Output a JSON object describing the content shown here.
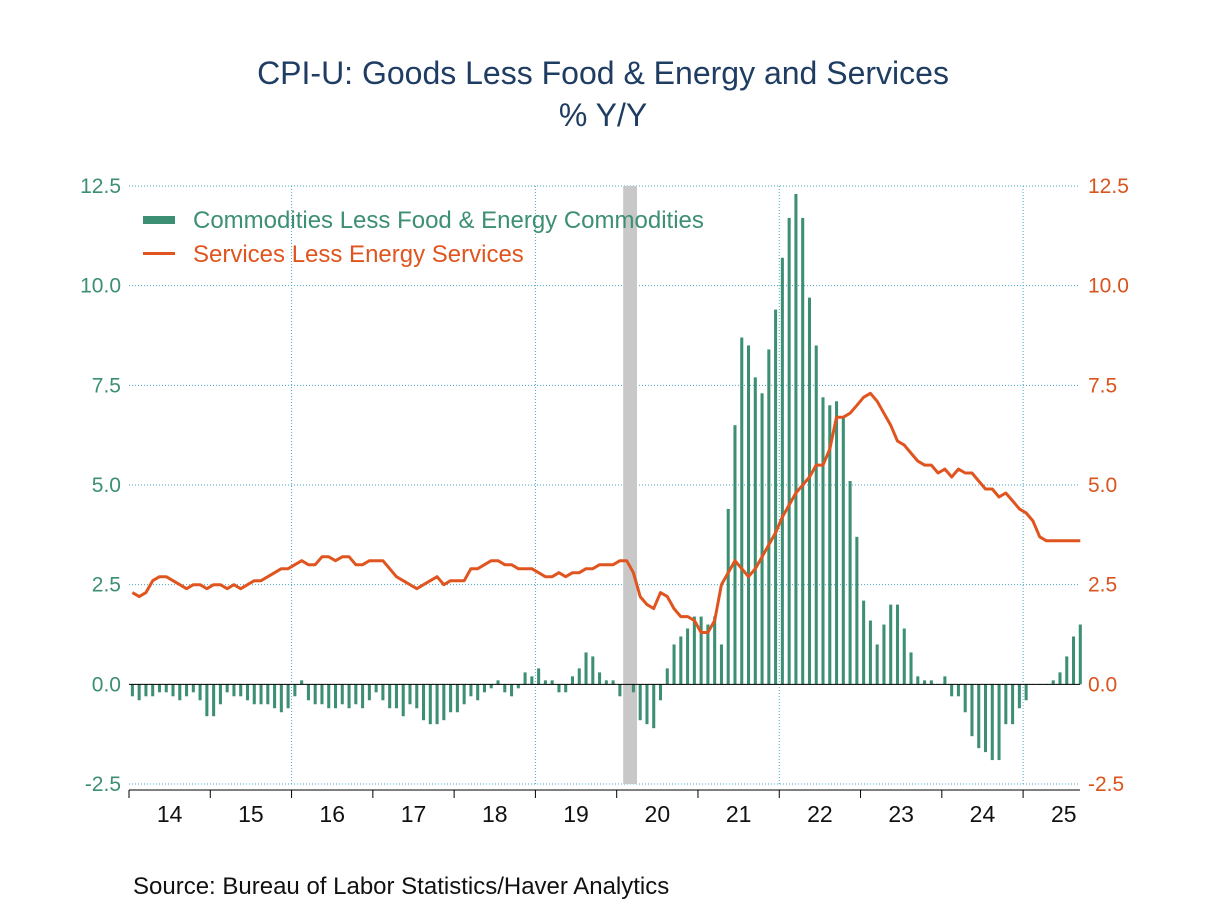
{
  "chart_data": {
    "type": "bar+line",
    "title": "CPI-U: Goods Less Food & Energy and Services",
    "subtitle": "% Y/Y",
    "source": "Source:  Bureau of Labor Statistics/Haver Analytics",
    "x_tick_labels": [
      "14",
      "15",
      "16",
      "17",
      "18",
      "19",
      "20",
      "21",
      "22",
      "23",
      "24",
      "25"
    ],
    "xlim": [
      2014.0,
      2025.7
    ],
    "y_left": {
      "ticks": [
        "12.5",
        "10.0",
        "7.5",
        "5.0",
        "2.5",
        "0.0",
        "-2.5"
      ],
      "ylim": [
        -2.5,
        12.5
      ]
    },
    "y_right": {
      "ticks": [
        "12.5",
        "10.0",
        "7.5",
        "5.0",
        "2.5",
        "0.0",
        "-2.5"
      ],
      "ylim": [
        -2.5,
        12.5
      ]
    },
    "grid": "dotted",
    "legend_position": "top-left",
    "recession_shading": [
      2020.08,
      2020.25
    ],
    "series": [
      {
        "name": "Commodities Less Food & Energy Commodities",
        "type": "bar",
        "axis": "left",
        "color": "#3d8f73",
        "start": 2014.0,
        "step": 0.0833,
        "values": [
          -0.3,
          -0.4,
          -0.3,
          -0.3,
          -0.2,
          -0.2,
          -0.3,
          -0.4,
          -0.3,
          -0.2,
          -0.4,
          -0.8,
          -0.8,
          -0.5,
          -0.2,
          -0.3,
          -0.3,
          -0.4,
          -0.5,
          -0.5,
          -0.5,
          -0.6,
          -0.7,
          -0.6,
          -0.3,
          0.1,
          -0.4,
          -0.5,
          -0.5,
          -0.6,
          -0.6,
          -0.5,
          -0.6,
          -0.5,
          -0.6,
          -0.4,
          -0.2,
          -0.4,
          -0.6,
          -0.6,
          -0.8,
          -0.5,
          -0.6,
          -0.9,
          -1.0,
          -1.0,
          -0.9,
          -0.7,
          -0.7,
          -0.5,
          -0.3,
          -0.4,
          -0.2,
          -0.1,
          0.1,
          -0.2,
          -0.3,
          -0.1,
          0.3,
          0.2,
          0.4,
          0.1,
          0.1,
          -0.2,
          -0.2,
          0.2,
          0.4,
          0.8,
          0.7,
          0.3,
          0.1,
          0.1,
          -0.3,
          0.0,
          -0.2,
          -0.9,
          -1.0,
          -1.1,
          -0.4,
          0.4,
          1.0,
          1.2,
          1.4,
          1.7,
          1.7,
          1.5,
          1.7,
          1.0,
          4.4,
          6.5,
          8.7,
          8.5,
          7.7,
          7.3,
          8.4,
          9.4,
          10.7,
          11.7,
          12.3,
          11.7,
          9.7,
          8.5,
          7.2,
          7.0,
          7.1,
          6.7,
          5.1,
          3.7,
          2.1,
          1.6,
          1.0,
          1.5,
          2.0,
          2.0,
          1.4,
          0.8,
          0.2,
          0.1,
          0.1,
          0.0,
          0.2,
          -0.3,
          -0.3,
          -0.7,
          -1.3,
          -1.6,
          -1.7,
          -1.9,
          -1.9,
          -1.0,
          -1.0,
          -0.6,
          -0.4,
          0.0,
          0.0,
          0.0,
          0.1,
          0.3,
          0.7,
          1.2,
          1.5
        ]
      },
      {
        "name": "Services Less Energy Services",
        "type": "line",
        "axis": "right",
        "color": "#e0551f",
        "start": 2014.0,
        "step": 0.0833,
        "values": [
          2.3,
          2.2,
          2.3,
          2.6,
          2.7,
          2.7,
          2.6,
          2.5,
          2.4,
          2.5,
          2.5,
          2.4,
          2.5,
          2.5,
          2.4,
          2.5,
          2.4,
          2.5,
          2.6,
          2.6,
          2.7,
          2.8,
          2.9,
          2.9,
          3.0,
          3.1,
          3.0,
          3.0,
          3.2,
          3.2,
          3.1,
          3.2,
          3.2,
          3.0,
          3.0,
          3.1,
          3.1,
          3.1,
          2.9,
          2.7,
          2.6,
          2.5,
          2.4,
          2.5,
          2.6,
          2.7,
          2.5,
          2.6,
          2.6,
          2.6,
          2.9,
          2.9,
          3.0,
          3.1,
          3.1,
          3.0,
          3.0,
          2.9,
          2.9,
          2.9,
          2.8,
          2.7,
          2.7,
          2.8,
          2.7,
          2.8,
          2.8,
          2.9,
          2.9,
          3.0,
          3.0,
          3.0,
          3.1,
          3.1,
          2.8,
          2.2,
          2.0,
          1.9,
          2.3,
          2.2,
          1.9,
          1.7,
          1.7,
          1.6,
          1.3,
          1.3,
          1.6,
          2.5,
          2.8,
          3.1,
          2.9,
          2.7,
          2.9,
          3.2,
          3.5,
          3.8,
          4.2,
          4.5,
          4.8,
          5.0,
          5.2,
          5.5,
          5.5,
          5.9,
          6.7,
          6.7,
          6.8,
          7.0,
          7.2,
          7.3,
          7.1,
          6.8,
          6.5,
          6.1,
          6.0,
          5.8,
          5.6,
          5.5,
          5.5,
          5.3,
          5.4,
          5.2,
          5.4,
          5.3,
          5.3,
          5.1,
          4.9,
          4.9,
          4.7,
          4.8,
          4.6,
          4.4,
          4.3,
          4.1,
          3.7,
          3.6,
          3.6,
          3.6,
          3.6,
          3.6,
          3.6
        ]
      }
    ]
  }
}
